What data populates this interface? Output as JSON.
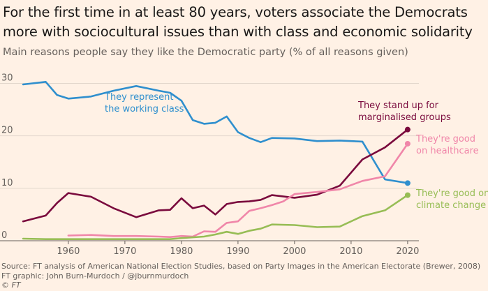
{
  "title": "For the first time in at least 80 years, voters associate the Democrats more with sociocultural issues than with class and economic solidarity",
  "subtitle": "Main reasons people say they like the Democratic party (% of all reasons given)",
  "source": "Source: FT analysis of American National Election Studies, based on Party Images in the American Electorate (Brewer, 2008)",
  "credit": "FT graphic: John Burn-Murdoch / @jburnmurdoch",
  "copyright": "© FT",
  "colors": {
    "background": "#fff1e5",
    "grid": "#e2d7cc",
    "text": "#66605c"
  },
  "chart_data": {
    "type": "line",
    "x_ticks": [
      1960,
      1970,
      1980,
      1990,
      2000,
      2010,
      2020
    ],
    "y_ticks": [
      0,
      10,
      20,
      30
    ],
    "xlim": [
      1951,
      2021
    ],
    "ylim": [
      0,
      31
    ],
    "grid": "horizontal",
    "series": [
      {
        "name": "They represent the working class",
        "label_lines": [
          "They represent",
          "the working class"
        ],
        "color": "#2f8fce",
        "end_dot": true,
        "points": [
          [
            1952,
            29.8
          ],
          [
            1956,
            30.3
          ],
          [
            1958,
            27.8
          ],
          [
            1960,
            27.1
          ],
          [
            1964,
            27.5
          ],
          [
            1968,
            28.6
          ],
          [
            1972,
            29.5
          ],
          [
            1976,
            28.6
          ],
          [
            1978,
            28.2
          ],
          [
            1980,
            26.7
          ],
          [
            1982,
            23.0
          ],
          [
            1984,
            22.3
          ],
          [
            1986,
            22.5
          ],
          [
            1988,
            23.7
          ],
          [
            1990,
            20.7
          ],
          [
            1992,
            19.6
          ],
          [
            1994,
            18.8
          ],
          [
            1996,
            19.6
          ],
          [
            2000,
            19.5
          ],
          [
            2004,
            19.0
          ],
          [
            2008,
            19.1
          ],
          [
            2012,
            18.9
          ],
          [
            2016,
            11.7
          ],
          [
            2020,
            11.0
          ]
        ]
      },
      {
        "name": "They stand up for marginalised groups",
        "label_lines": [
          "They stand up for",
          "marginalised groups"
        ],
        "color": "#7a0a3d",
        "end_dot": true,
        "points": [
          [
            1952,
            3.7
          ],
          [
            1956,
            4.8
          ],
          [
            1958,
            7.2
          ],
          [
            1960,
            9.1
          ],
          [
            1964,
            8.4
          ],
          [
            1968,
            6.2
          ],
          [
            1972,
            4.5
          ],
          [
            1976,
            5.8
          ],
          [
            1978,
            5.9
          ],
          [
            1980,
            8.1
          ],
          [
            1982,
            6.2
          ],
          [
            1984,
            6.7
          ],
          [
            1986,
            5.0
          ],
          [
            1988,
            7.0
          ],
          [
            1990,
            7.4
          ],
          [
            1992,
            7.5
          ],
          [
            1994,
            7.8
          ],
          [
            1996,
            8.7
          ],
          [
            2000,
            8.2
          ],
          [
            2004,
            8.8
          ],
          [
            2008,
            10.5
          ],
          [
            2012,
            15.5
          ],
          [
            2016,
            17.8
          ],
          [
            2020,
            21.2
          ]
        ]
      },
      {
        "name": "They're good on healthcare",
        "label_lines": [
          "They're good",
          "on healthcare"
        ],
        "color": "#f086a9",
        "end_dot": true,
        "points": [
          [
            1960,
            1.0
          ],
          [
            1964,
            1.1
          ],
          [
            1968,
            0.9
          ],
          [
            1972,
            0.9
          ],
          [
            1976,
            0.8
          ],
          [
            1978,
            0.7
          ],
          [
            1980,
            0.9
          ],
          [
            1982,
            0.8
          ],
          [
            1984,
            1.8
          ],
          [
            1986,
            1.7
          ],
          [
            1988,
            3.4
          ],
          [
            1990,
            3.7
          ],
          [
            1992,
            5.7
          ],
          [
            1994,
            6.2
          ],
          [
            1996,
            6.8
          ],
          [
            1998,
            7.5
          ],
          [
            2000,
            8.9
          ],
          [
            2004,
            9.3
          ],
          [
            2008,
            9.8
          ],
          [
            2012,
            11.4
          ],
          [
            2016,
            12.3
          ],
          [
            2020,
            18.5
          ]
        ]
      },
      {
        "name": "They're good on climate change",
        "label_lines": [
          "They're good on",
          "climate change"
        ],
        "color": "#97bd55",
        "end_dot": true,
        "points": [
          [
            1952,
            0.4
          ],
          [
            1956,
            0.3
          ],
          [
            1960,
            0.3
          ],
          [
            1964,
            0.3
          ],
          [
            1968,
            0.3
          ],
          [
            1972,
            0.3
          ],
          [
            1976,
            0.3
          ],
          [
            1978,
            0.3
          ],
          [
            1980,
            0.5
          ],
          [
            1984,
            0.8
          ],
          [
            1986,
            1.2
          ],
          [
            1988,
            1.7
          ],
          [
            1990,
            1.3
          ],
          [
            1992,
            1.9
          ],
          [
            1994,
            2.3
          ],
          [
            1996,
            3.1
          ],
          [
            2000,
            3.0
          ],
          [
            2004,
            2.6
          ],
          [
            2008,
            2.7
          ],
          [
            2012,
            4.7
          ],
          [
            2016,
            5.8
          ],
          [
            2020,
            8.7
          ]
        ]
      }
    ]
  }
}
